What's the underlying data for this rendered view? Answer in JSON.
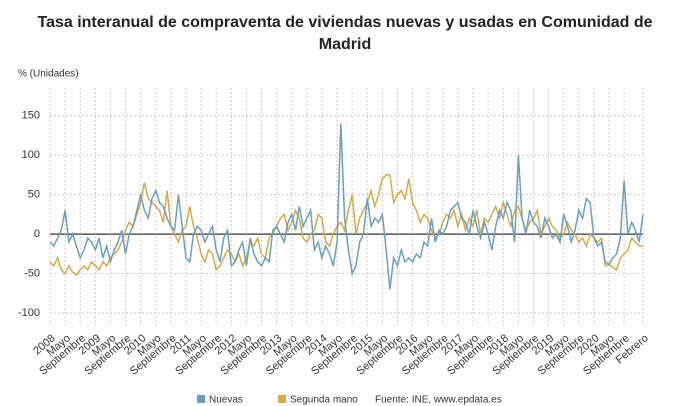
{
  "chart_data": {
    "type": "line",
    "title": "Tasa interanual de compraventa de viviendas nuevas y usadas en Comunidad de Madrid",
    "y_label": "% (Unidades)",
    "source": "Fuente: INE, www.epdata.es",
    "categories": [
      "2008",
      null,
      null,
      null,
      "Mayo",
      null,
      null,
      null,
      "Septiembre",
      null,
      null,
      null,
      "2009",
      null,
      null,
      null,
      "Mayo",
      null,
      null,
      null,
      "Septiembre",
      null,
      null,
      null,
      "2010",
      null,
      null,
      null,
      "Mayo",
      null,
      null,
      null,
      "Septiembre",
      null,
      null,
      null,
      "2011",
      null,
      null,
      null,
      "Mayo",
      null,
      null,
      null,
      "Septiembre",
      null,
      null,
      null,
      "2012",
      null,
      null,
      null,
      "Mayo",
      null,
      null,
      null,
      "Septiembre",
      null,
      null,
      null,
      "2013",
      null,
      null,
      null,
      "Mayo",
      null,
      null,
      null,
      "Septiembre",
      null,
      null,
      null,
      "2014",
      null,
      null,
      null,
      "Mayo",
      null,
      null,
      null,
      "Septiembre",
      null,
      null,
      null,
      "2015",
      null,
      null,
      null,
      "Mayo",
      null,
      null,
      null,
      "Septiembre",
      null,
      null,
      null,
      "2016",
      null,
      null,
      null,
      "Mayo",
      null,
      null,
      null,
      "Septiembre",
      null,
      null,
      null,
      "2017",
      null,
      null,
      null,
      "Mayo",
      null,
      null,
      null,
      "Septiembre",
      null,
      null,
      null,
      "2018",
      null,
      null,
      null,
      "Mayo",
      null,
      null,
      null,
      "Septiembre",
      null,
      null,
      null,
      "2019",
      null,
      null,
      null,
      "Mayo",
      null,
      null,
      null,
      "Septiembre",
      null,
      null,
      null,
      "2020",
      null,
      null,
      null,
      "Mayo",
      null,
      null,
      null,
      "Septiembre",
      null,
      null,
      null,
      null,
      "Febrero"
    ],
    "series": [
      {
        "name": "Nuevas",
        "color": "#6a9fc0",
        "values": [
          -10,
          -15,
          -5,
          5,
          30,
          -10,
          0,
          -15,
          -30,
          -20,
          -5,
          -10,
          -20,
          -5,
          -30,
          -15,
          -35,
          -20,
          -10,
          5,
          -25,
          0,
          10,
          30,
          50,
          30,
          20,
          45,
          55,
          40,
          35,
          20,
          10,
          5,
          50,
          10,
          -30,
          -35,
          0,
          10,
          5,
          -10,
          0,
          10,
          -20,
          -35,
          -5,
          5,
          -40,
          -35,
          -20,
          -10,
          -40,
          -5,
          -25,
          -35,
          -40,
          -30,
          -35,
          5,
          10,
          0,
          -10,
          15,
          25,
          5,
          35,
          10,
          20,
          30,
          -20,
          -10,
          -30,
          -15,
          -25,
          -40,
          -10,
          140,
          20,
          -20,
          -50,
          -40,
          -10,
          0,
          45,
          10,
          20,
          15,
          25,
          -20,
          -70,
          -30,
          -40,
          -20,
          -35,
          -30,
          -35,
          -25,
          -30,
          -10,
          -15,
          20,
          -10,
          5,
          0,
          10,
          30,
          35,
          40,
          20,
          15,
          0,
          30,
          10,
          -5,
          15,
          0,
          -20,
          10,
          30,
          20,
          40,
          30,
          -10,
          100,
          20,
          0,
          30,
          15,
          10,
          -5,
          20,
          10,
          -5,
          0,
          -10,
          25,
          10,
          -10,
          5,
          30,
          20,
          45,
          40,
          -5,
          -15,
          -10,
          -35,
          -38,
          -30,
          -25,
          -5,
          68,
          0,
          15,
          5,
          -10,
          25
        ]
      },
      {
        "name": "Segunda mano",
        "color": "#d4aa4a",
        "values": [
          -35,
          -40,
          -30,
          -45,
          -50,
          -40,
          -48,
          -52,
          -45,
          -40,
          -45,
          -35,
          -40,
          -45,
          -35,
          -40,
          -30,
          -25,
          -20,
          -10,
          5,
          15,
          10,
          25,
          40,
          65,
          45,
          40,
          35,
          30,
          15,
          55,
          10,
          0,
          -10,
          5,
          10,
          35,
          10,
          -5,
          -25,
          -35,
          -20,
          -25,
          -45,
          -40,
          -30,
          -20,
          -25,
          -35,
          -25,
          -40,
          -30,
          -10,
          -15,
          -5,
          -25,
          -30,
          -5,
          0,
          10,
          20,
          25,
          5,
          15,
          30,
          20,
          -5,
          -10,
          0,
          5,
          25,
          20,
          -10,
          -15,
          0,
          10,
          15,
          5,
          30,
          50,
          0,
          20,
          30,
          40,
          55,
          35,
          50,
          70,
          75,
          75,
          40,
          50,
          55,
          45,
          70,
          40,
          30,
          15,
          25,
          20,
          5,
          -5,
          0,
          15,
          25,
          20,
          30,
          10,
          25,
          5,
          20,
          10,
          30,
          0,
          20,
          15,
          25,
          35,
          20,
          40,
          25,
          10,
          30,
          35,
          20,
          5,
          15,
          20,
          30,
          0,
          10,
          20,
          10,
          5,
          -5,
          0,
          15,
          5,
          0,
          -10,
          -5,
          -15,
          0,
          -5,
          -10,
          -5,
          -40,
          -38,
          -42,
          -45,
          -30,
          -25,
          -20,
          -5,
          -10,
          -15,
          -15
        ]
      }
    ],
    "ylim": [
      -115,
      185
    ],
    "yticks": [
      -100,
      -50,
      0,
      50,
      100,
      150
    ],
    "grid": true
  }
}
